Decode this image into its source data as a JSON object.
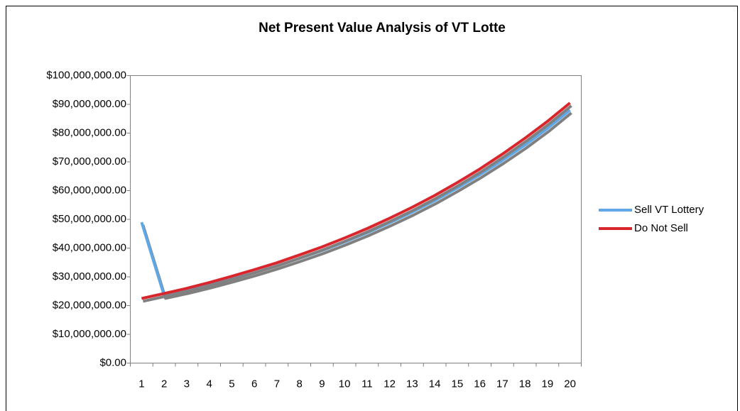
{
  "chart_data": {
    "type": "line",
    "title": "Net Present Value Analysis of VT Lotte",
    "categories": [
      "1",
      "2",
      "3",
      "4",
      "5",
      "6",
      "7",
      "8",
      "9",
      "10",
      "11",
      "12",
      "13",
      "14",
      "15",
      "16",
      "17",
      "18",
      "19",
      "20"
    ],
    "series": [
      {
        "name": "Sell VT Lottery",
        "color": "#5fa8e8",
        "values": [
          49000000,
          23500000,
          25200000,
          27100000,
          29200000,
          31400000,
          33800000,
          36400000,
          39100000,
          42100000,
          45300000,
          48800000,
          52500000,
          56500000,
          60900000,
          65500000,
          70500000,
          75800000,
          81600000,
          88000000
        ]
      },
      {
        "name": "Do Not Sell",
        "color": "#d9262c",
        "values": [
          22500000,
          24200000,
          26000000,
          28000000,
          30200000,
          32500000,
          34900000,
          37600000,
          40400000,
          43500000,
          46800000,
          50400000,
          54200000,
          58300000,
          62800000,
          67500000,
          72700000,
          78200000,
          84100000,
          90500000
        ]
      }
    ],
    "ylim": [
      0,
      100000000
    ],
    "yticks": [
      {
        "value": 0,
        "label": "$0.00"
      },
      {
        "value": 10000000,
        "label": "$10,000,000.00"
      },
      {
        "value": 20000000,
        "label": "$20,000,000.00"
      },
      {
        "value": 30000000,
        "label": "$30,000,000.00"
      },
      {
        "value": 40000000,
        "label": "$40,000,000.00"
      },
      {
        "value": 50000000,
        "label": "$50,000,000.00"
      },
      {
        "value": 60000000,
        "label": "$60,000,000.00"
      },
      {
        "value": 70000000,
        "label": "$70,000,000.00"
      },
      {
        "value": 80000000,
        "label": "$80,000,000.00"
      },
      {
        "value": 90000000,
        "label": "$90,000,000.00"
      },
      {
        "value": 100000000,
        "label": "$100,000,000.00"
      }
    ],
    "grid": false,
    "legend": "right"
  }
}
